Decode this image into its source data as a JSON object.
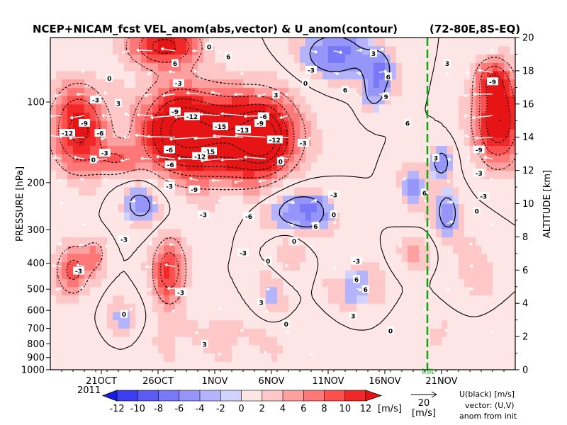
{
  "chart_data": {
    "type": "heatmap",
    "title": "NCEP+NICAM_fcst VEL_anom(abs,vector) & U_anom(contour)",
    "region": "(72-80E,8S-EQ)",
    "ylabel_left": "PRESSURE [hPa]",
    "ylabel_right": "ALTITUDE [km]",
    "pressure_ticks": [
      100,
      200,
      300,
      400,
      500,
      600,
      700,
      800,
      900,
      1000
    ],
    "altitude_ticks": [
      0,
      2,
      4,
      6,
      8,
      10,
      12,
      14,
      16,
      18,
      20
    ],
    "time_ticks": [
      "21OCT",
      "26OCT",
      "1NOV",
      "6NOV",
      "11NOV",
      "16NOV",
      "21NOV"
    ],
    "year_label": "2011",
    "init_label": "init",
    "colorbar": {
      "unit": "[m/s]",
      "ticks": [
        -12,
        -10,
        -8,
        -6,
        -4,
        -2,
        0,
        2,
        4,
        6,
        8,
        10,
        12
      ],
      "colors": [
        "#1a1ae6",
        "#3c3cf0",
        "#5a5af5",
        "#7878f8",
        "#9696fa",
        "#b4b4fc",
        "#d2d2fe",
        "#ffe6e6",
        "#ffc8c8",
        "#ffa0a0",
        "#ff7878",
        "#ff5050",
        "#f02828",
        "#e61414"
      ]
    },
    "vector_scale": {
      "value": "20",
      "unit": "[m/s]"
    },
    "legend_text": [
      "U(black) [m/s]",
      "vector: (U,V)",
      "anom from init"
    ],
    "contour_labels": [
      {
        "v": "-12",
        "t": 1.5,
        "a": 14.2
      },
      {
        "v": "-9",
        "t": 3.0,
        "a": 14.8
      },
      {
        "v": "-6",
        "t": 4.4,
        "a": 14.2
      },
      {
        "v": "-3",
        "t": 4.8,
        "a": 13.0
      },
      {
        "v": "-3",
        "t": 4.0,
        "a": 16.2
      },
      {
        "v": "-9",
        "t": 11.0,
        "a": 15.5
      },
      {
        "v": "-12",
        "t": 12.5,
        "a": 15.2
      },
      {
        "v": "-15",
        "t": 15.0,
        "a": 14.6
      },
      {
        "v": "-15",
        "t": 14.0,
        "a": 13.1
      },
      {
        "v": "-13",
        "t": 17.0,
        "a": 14.4
      },
      {
        "v": "-9",
        "t": 18.5,
        "a": 14.8
      },
      {
        "v": "-6",
        "t": 18.8,
        "a": 15.2
      },
      {
        "v": "-12",
        "t": 19.8,
        "a": 13.8
      },
      {
        "v": "-6",
        "t": 10.6,
        "a": 12.3
      },
      {
        "v": "-12",
        "t": 13.2,
        "a": 12.8
      },
      {
        "v": "-6",
        "t": 10.5,
        "a": 13.2
      },
      {
        "v": "-9",
        "t": 12.7,
        "a": 10.8
      },
      {
        "v": "-3",
        "t": 10.5,
        "a": 11.0
      },
      {
        "v": "-6",
        "t": 17.5,
        "a": 9.2
      },
      {
        "v": "-3",
        "t": 13.5,
        "a": 9.3
      },
      {
        "v": "-3",
        "t": 6.5,
        "a": 7.8
      },
      {
        "v": "-3",
        "t": 2.5,
        "a": 5.9
      },
      {
        "v": "-3",
        "t": 11.5,
        "a": 4.6
      },
      {
        "v": "-3",
        "t": 17.0,
        "a": 7.0
      },
      {
        "v": "-3",
        "t": 27.0,
        "a": 6.5
      },
      {
        "v": "-3",
        "t": 25.0,
        "a": 10.5
      },
      {
        "v": "-3",
        "t": 22.3,
        "a": 13.6
      },
      {
        "v": "-3",
        "t": 23.0,
        "a": 18.0
      },
      {
        "v": "-3",
        "t": 37.8,
        "a": 11.8
      },
      {
        "v": "-3",
        "t": 38.2,
        "a": 10.4
      },
      {
        "v": "-9",
        "t": 39.0,
        "a": 17.3
      },
      {
        "v": "-9",
        "t": 37.8,
        "a": 13.2
      },
      {
        "v": "-3",
        "t": 11.3,
        "a": 17.2
      },
      {
        "v": "0",
        "t": 5.2,
        "a": 17.5
      },
      {
        "v": "0",
        "t": 3.8,
        "a": 12.6
      },
      {
        "v": "0",
        "t": 6.5,
        "a": 3.3
      },
      {
        "v": "0",
        "t": 19.2,
        "a": 6.5
      },
      {
        "v": "0",
        "t": 20.3,
        "a": 12.5
      },
      {
        "v": "0",
        "t": 25.0,
        "a": 9.3
      },
      {
        "v": "0",
        "t": 21.5,
        "a": 7.7
      },
      {
        "v": "0",
        "t": 20.8,
        "a": 2.7
      },
      {
        "v": "0",
        "t": 30.0,
        "a": 2.3
      },
      {
        "v": "0",
        "t": 14.0,
        "a": 19.4
      },
      {
        "v": "0",
        "t": 22.5,
        "a": 17.2
      },
      {
        "v": "0",
        "t": 37.6,
        "a": 9.5
      },
      {
        "v": "3",
        "t": 6.0,
        "a": 16.0
      },
      {
        "v": "3",
        "t": 13.6,
        "a": 1.5
      },
      {
        "v": "3",
        "t": 26.7,
        "a": 3.2
      },
      {
        "v": "3",
        "t": 28.5,
        "a": 19.0
      },
      {
        "v": "3",
        "t": 34.0,
        "a": 12.7
      },
      {
        "v": "3",
        "t": 35.0,
        "a": 18.4
      },
      {
        "v": "6",
        "t": 27.8,
        "a": 4.8
      },
      {
        "v": "6",
        "t": 27.0,
        "a": 5.4
      },
      {
        "v": "6",
        "t": 23.4,
        "a": 8.6
      },
      {
        "v": "6",
        "t": 33.0,
        "a": 10.6
      },
      {
        "v": "6",
        "t": 11.0,
        "a": 18.4
      },
      {
        "v": "6",
        "t": 15.7,
        "a": 18.8
      },
      {
        "v": "6",
        "t": 26.0,
        "a": 16.8
      },
      {
        "v": "6",
        "t": 29.8,
        "a": 17.6
      },
      {
        "v": "6",
        "t": 31.5,
        "a": 14.8
      },
      {
        "v": "9",
        "t": 29.6,
        "a": 16.4
      },
      {
        "v": "3",
        "t": 19.9,
        "a": 16.5
      },
      {
        "v": "3",
        "t": 18.6,
        "a": 4.0
      }
    ]
  }
}
